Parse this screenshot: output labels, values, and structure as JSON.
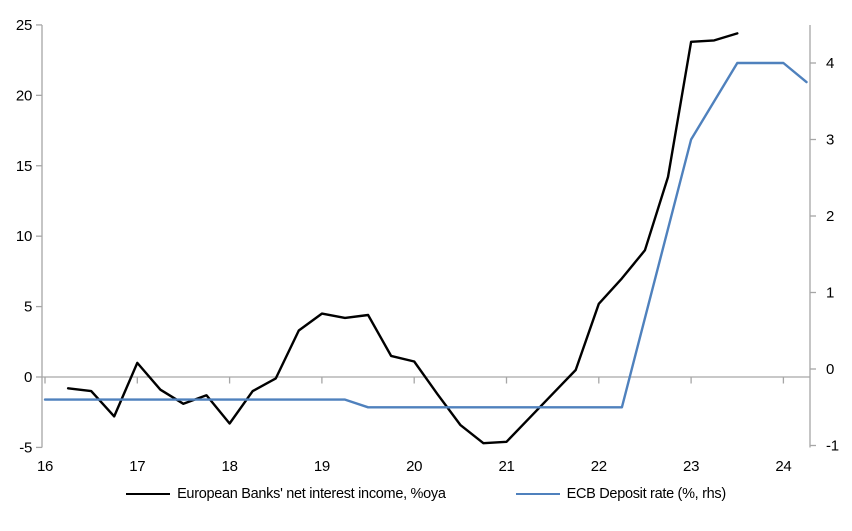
{
  "chart_data": {
    "type": "line",
    "title": "",
    "xlabel": "",
    "ylabel_left": "",
    "ylabel_right": "",
    "x_axis": {
      "ticks": [
        "16",
        "17",
        "18",
        "19",
        "20",
        "21",
        "22",
        "23",
        "24"
      ],
      "tick_values": [
        16,
        17,
        18,
        19,
        20,
        21,
        22,
        23,
        24
      ],
      "range": [
        16,
        24.3
      ]
    },
    "y_axis_left": {
      "ticks": [
        "-5",
        "0",
        "5",
        "10",
        "15",
        "20",
        "25"
      ],
      "tick_values": [
        -5,
        0,
        5,
        10,
        15,
        20,
        25
      ],
      "range": [
        -5,
        25
      ]
    },
    "y_axis_right": {
      "ticks": [
        "-1",
        "0",
        "1",
        "2",
        "3",
        "4"
      ],
      "tick_values": [
        -1,
        0,
        1,
        2,
        3,
        4
      ],
      "range": [
        -1,
        4.5
      ]
    },
    "grid": "zero-line-only",
    "legend_position": "bottom-center",
    "colors": {
      "axis": "#A6A6A6",
      "zero_line": "#A6A6A6",
      "series_nii": "#000000",
      "series_ecb": "#4F81BD"
    },
    "series": [
      {
        "name": "European Banks' net interest income, %oya",
        "axis": "left",
        "color": "#000000",
        "points": [
          [
            16.25,
            -0.8
          ],
          [
            16.5,
            -1.0
          ],
          [
            16.75,
            -2.8
          ],
          [
            17.0,
            1.0
          ],
          [
            17.25,
            -0.9
          ],
          [
            17.5,
            -1.9
          ],
          [
            17.75,
            -1.3
          ],
          [
            18.0,
            -3.3
          ],
          [
            18.25,
            -1.0
          ],
          [
            18.5,
            -0.1
          ],
          [
            18.75,
            3.3
          ],
          [
            19.0,
            4.5
          ],
          [
            19.25,
            4.2
          ],
          [
            19.5,
            4.4
          ],
          [
            19.75,
            1.5
          ],
          [
            20.0,
            1.1
          ],
          [
            20.25,
            -1.2
          ],
          [
            20.5,
            -3.4
          ],
          [
            20.75,
            -4.7
          ],
          [
            21.0,
            -4.6
          ],
          [
            21.25,
            -2.9
          ],
          [
            21.5,
            -1.2
          ],
          [
            21.75,
            0.5
          ],
          [
            22.0,
            5.2
          ],
          [
            22.25,
            7.0
          ],
          [
            22.5,
            9.0
          ],
          [
            22.75,
            14.2
          ],
          [
            23.0,
            23.8
          ],
          [
            23.25,
            23.9
          ],
          [
            23.5,
            24.4
          ]
        ]
      },
      {
        "name": "ECB Deposit rate (%, rhs)",
        "axis": "right",
        "color": "#4F81BD",
        "points": [
          [
            16.0,
            -0.4
          ],
          [
            19.25,
            -0.4
          ],
          [
            19.5,
            -0.5
          ],
          [
            22.25,
            -0.5
          ],
          [
            23.0,
            3.0
          ],
          [
            23.5,
            4.0
          ],
          [
            24.0,
            4.0
          ],
          [
            24.25,
            3.75
          ]
        ]
      }
    ]
  }
}
